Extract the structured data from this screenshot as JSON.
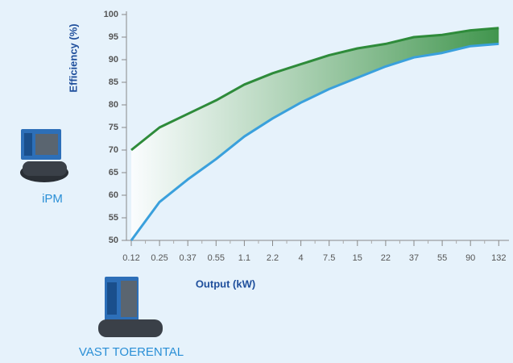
{
  "chart_data": {
    "type": "line",
    "x_label": "Output (kW)",
    "y_label": "Efficiency (%)",
    "categories": [
      "0.12",
      "0.25",
      "0.37",
      "0.55",
      "1.1",
      "2.2",
      "4",
      "7.5",
      "15",
      "22",
      "37",
      "55",
      "90",
      "132"
    ],
    "series": [
      {
        "name": "iPM",
        "color": "#2e8b3a",
        "values": [
          70,
          75,
          78,
          81,
          84.5,
          87,
          89,
          91,
          92.5,
          93.5,
          95,
          95.5,
          96.5,
          97
        ]
      },
      {
        "name": "VAST TOERENTAL",
        "color": "#3aa0dc",
        "values": [
          50,
          58.5,
          63.5,
          68,
          73,
          77,
          80.5,
          83.5,
          86,
          88.5,
          90.5,
          91.5,
          93,
          93.5
        ]
      }
    ],
    "ylim": [
      50,
      100
    ],
    "yticks": [
      50,
      55,
      60,
      65,
      70,
      75,
      80,
      85,
      90,
      95,
      100
    ],
    "grid": false
  }
}
